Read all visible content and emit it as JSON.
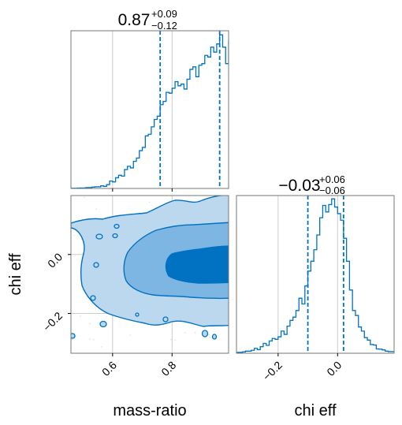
{
  "colors": {
    "line": "#0072C1",
    "fill_outer": "#BBD8EF",
    "fill_middle": "#7EB6E3",
    "fill_inner": "#0072C1",
    "grid": "#cccccc",
    "frame": "#777777"
  },
  "chart_data": {
    "type": "corner",
    "parameters": [
      "mass-ratio",
      "chi eff"
    ],
    "marginals": [
      {
        "parameter": "mass-ratio",
        "type": "histogram",
        "title": {
          "median": "0.87",
          "plus": "+0.09",
          "minus": "−0.12"
        },
        "xlim": [
          0.46,
          0.99
        ],
        "quantiles": [
          0.76,
          0.96
        ],
        "ticks": [
          0.6,
          0.8
        ],
        "tick_labels": [
          "0.6",
          "0.8"
        ],
        "bins": [
          [
            0.46,
            0.1
          ],
          [
            0.47,
            0.1
          ],
          [
            0.48,
            0.2
          ],
          [
            0.49,
            0.3
          ],
          [
            0.5,
            0.3
          ],
          [
            0.51,
            0.5
          ],
          [
            0.52,
            0.5
          ],
          [
            0.53,
            0.8
          ],
          [
            0.54,
            1.0
          ],
          [
            0.55,
            1.0
          ],
          [
            0.56,
            1.6
          ],
          [
            0.57,
            1.3
          ],
          [
            0.58,
            2.3
          ],
          [
            0.59,
            4.5
          ],
          [
            0.6,
            4.0
          ],
          [
            0.61,
            6.5
          ],
          [
            0.62,
            8.0
          ],
          [
            0.63,
            7.5
          ],
          [
            0.64,
            11.5
          ],
          [
            0.65,
            13.5
          ],
          [
            0.66,
            12.5
          ],
          [
            0.67,
            16.5
          ],
          [
            0.68,
            18.5
          ],
          [
            0.69,
            23.0
          ],
          [
            0.7,
            25.0
          ],
          [
            0.71,
            32.0
          ],
          [
            0.72,
            33.0
          ],
          [
            0.73,
            37.5
          ],
          [
            0.74,
            42.0
          ],
          [
            0.75,
            44.0
          ],
          [
            0.76,
            51.0
          ],
          [
            0.77,
            53.0
          ],
          [
            0.78,
            58.5
          ],
          [
            0.79,
            58.0
          ],
          [
            0.8,
            61.0
          ],
          [
            0.81,
            65.0
          ],
          [
            0.82,
            62.5
          ],
          [
            0.83,
            63.5
          ],
          [
            0.84,
            60.5
          ],
          [
            0.85,
            66.5
          ],
          [
            0.86,
            72.5
          ],
          [
            0.87,
            74.0
          ],
          [
            0.88,
            68.0
          ],
          [
            0.89,
            75.0
          ],
          [
            0.9,
            76.0
          ],
          [
            0.91,
            81.0
          ],
          [
            0.92,
            80.0
          ],
          [
            0.93,
            86.0
          ],
          [
            0.94,
            83.0
          ],
          [
            0.95,
            88.0
          ],
          [
            0.96,
            93.5
          ],
          [
            0.97,
            86.0
          ],
          [
            0.98,
            76.0
          ],
          [
            0.99,
            90.0
          ]
        ]
      },
      {
        "parameter": "chi eff",
        "type": "histogram",
        "title": {
          "median": "−0.03",
          "plus": "+0.06",
          "minus": "−0.06"
        },
        "xlim": [
          -0.34,
          0.19
        ],
        "quantiles": [
          -0.1,
          0.02
        ],
        "ticks": [
          -0.2,
          0.0
        ],
        "tick_labels": [
          "−0.2",
          "0.0"
        ],
        "bins": [
          [
            -0.34,
            0.5
          ],
          [
            -0.33,
            0.5
          ],
          [
            -0.32,
            0.8
          ],
          [
            -0.31,
            1.3
          ],
          [
            -0.3,
            1.3
          ],
          [
            -0.29,
            1.8
          ],
          [
            -0.28,
            3.0
          ],
          [
            -0.27,
            2.2
          ],
          [
            -0.26,
            4.0
          ],
          [
            -0.25,
            6.0
          ],
          [
            -0.24,
            4.8
          ],
          [
            -0.23,
            7.5
          ],
          [
            -0.22,
            9.0
          ],
          [
            -0.21,
            8.5
          ],
          [
            -0.2,
            10.0
          ],
          [
            -0.19,
            13.5
          ],
          [
            -0.18,
            11.5
          ],
          [
            -0.17,
            16.5
          ],
          [
            -0.16,
            20.0
          ],
          [
            -0.15,
            22.0
          ],
          [
            -0.14,
            26.0
          ],
          [
            -0.13,
            33.5
          ],
          [
            -0.12,
            30.0
          ],
          [
            -0.11,
            41.0
          ],
          [
            -0.1,
            50.0
          ],
          [
            -0.09,
            56.0
          ],
          [
            -0.08,
            63.0
          ],
          [
            -0.07,
            72.0
          ],
          [
            -0.06,
            82.5
          ],
          [
            -0.05,
            90.0
          ],
          [
            -0.04,
            86.0
          ],
          [
            -0.03,
            90.5
          ],
          [
            -0.02,
            94.0
          ],
          [
            -0.01,
            89.0
          ],
          [
            0.0,
            85.0
          ],
          [
            0.01,
            81.0
          ],
          [
            0.02,
            70.0
          ],
          [
            0.03,
            56.0
          ],
          [
            0.04,
            38.5
          ],
          [
            0.05,
            26.0
          ],
          [
            0.06,
            23.0
          ],
          [
            0.07,
            16.0
          ],
          [
            0.08,
            13.5
          ],
          [
            0.09,
            9.5
          ],
          [
            0.1,
            8.0
          ],
          [
            0.11,
            5.3
          ],
          [
            0.12,
            5.0
          ],
          [
            0.13,
            2.6
          ],
          [
            0.14,
            2.5
          ],
          [
            0.15,
            2.0
          ],
          [
            0.16,
            1.3
          ],
          [
            0.17,
            1.0
          ],
          [
            0.18,
            1.0
          ]
        ]
      }
    ],
    "joint": {
      "x": "mass-ratio",
      "y": "chi eff",
      "xlim": [
        0.46,
        0.99
      ],
      "ylim": [
        -0.335,
        0.2
      ],
      "yticks": [
        0.0,
        -0.2
      ],
      "ytick_labels": [
        "0.0",
        "−0.2"
      ],
      "density_center": {
        "x": 0.9,
        "y": -0.05
      },
      "levels": [
        "outer",
        "middle",
        "inner"
      ]
    },
    "xlabels": [
      "mass-ratio",
      "chi eff"
    ],
    "ylabel": "chi eff",
    "grid": true
  }
}
